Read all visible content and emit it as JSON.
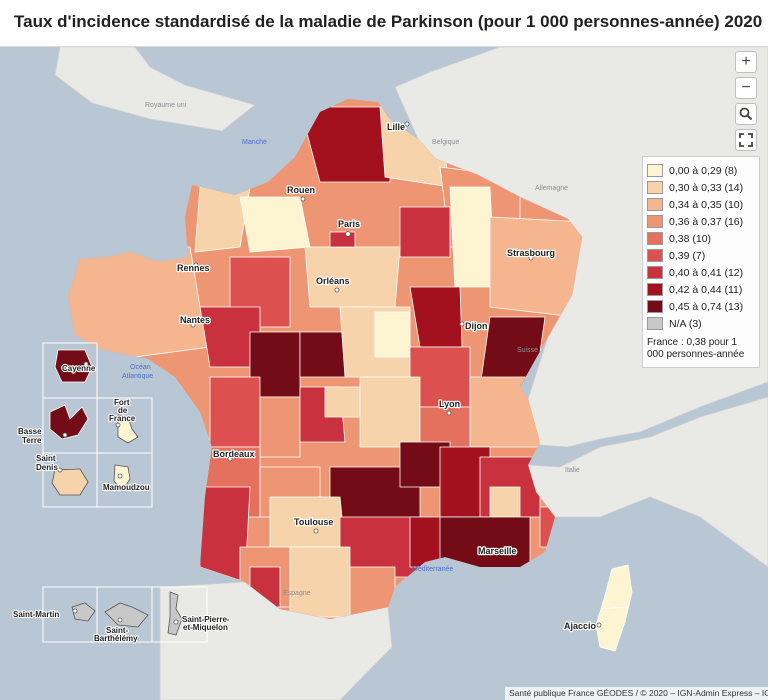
{
  "title": "Taux d'incidence standardisé de la maladie de Parkinson (pour 1 000 personnes-année)  2020",
  "controls": {
    "zoom_in": "+",
    "zoom_out": "−",
    "search_icon": "magnifier-icon",
    "fullscreen_icon": "expand-icon"
  },
  "legend": {
    "classes": [
      {
        "label": "0,00 à 0,29 (8)",
        "color": "#fdf5d2"
      },
      {
        "label": "0,30 à 0,33 (14)",
        "color": "#f7d3ab"
      },
      {
        "label": "0,34 à 0,35 (10)",
        "color": "#f4b58f"
      },
      {
        "label": "0,36 à 0,37 (16)",
        "color": "#ee9673"
      },
      {
        "label": "0,38 (10)",
        "color": "#e4705e"
      },
      {
        "label": "0,39 (7)",
        "color": "#dd5050"
      },
      {
        "label": "0,40 à 0,41 (12)",
        "color": "#ca313e"
      },
      {
        "label": "0,42 à 0,44 (11)",
        "color": "#a3111f"
      },
      {
        "label": "0,45 à 0,74 (13)",
        "color": "#730c16"
      },
      {
        "label": "N/A (3)",
        "color": "#c8c8c8"
      }
    ],
    "note": "France : 0,38 pour 1 000 personnes-année"
  },
  "countries": {
    "uk": "Royaume uni",
    "belgium": "Belgique",
    "germany": "Allemagne",
    "switzerland": "Suisse",
    "italy": "Italie",
    "spain": "Espagne"
  },
  "seas": {
    "channel": "Manche",
    "atlantic_1": "Océan",
    "atlantic_2": "Atlantique",
    "med": "Méditerranée"
  },
  "cities": {
    "lille": "Lille",
    "rouen": "Rouen",
    "paris": "Paris",
    "rennes": "Rennes",
    "orleans": "Orléans",
    "strasbourg": "Strasbourg",
    "nantes": "Nantes",
    "dijon": "Dijon",
    "lyon": "Lyon",
    "bordeaux": "Bordeaux",
    "toulouse": "Toulouse",
    "marseille": "Marseille",
    "ajaccio": "Ajaccio"
  },
  "insets": {
    "cayenne": "Cayenne",
    "basse_terre_1": "Basse",
    "basse_terre_2": "Terre",
    "fort_de_france_1": "Fort",
    "fort_de_france_2": "de",
    "fort_de_france_3": "France",
    "saint_denis_1": "Saint",
    "saint_denis_2": "Denis",
    "mamoudzou": "Mamoudzou",
    "saint_martin": "Saint-Martin",
    "saint_barthelemy_1": "Saint-",
    "saint_barthelemy_2": "Barthélémy",
    "saint_pierre_1": "Saint-Pierre-",
    "saint_pierre_2": "et-Miquelon"
  },
  "attribution": "Santé publique France GÉODES / © 2020 – IGN-Admin Express – IG"
}
